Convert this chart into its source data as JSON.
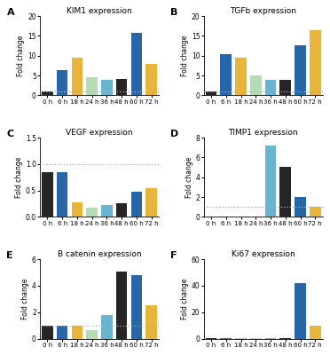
{
  "panels": [
    {
      "label": "A",
      "title": "KIM1 expression",
      "categories": [
        "0 h",
        "6 h",
        "18 h",
        "24 h",
        "36 h",
        "48 h",
        "60 h",
        "72 h"
      ],
      "values": [
        0.9,
        6.3,
        9.4,
        4.6,
        3.9,
        4.1,
        15.7,
        7.9
      ],
      "ylim": [
        0,
        20
      ],
      "yticks": [
        0,
        5,
        10,
        15,
        20
      ],
      "dotted_line": 1.0,
      "show_dotted": true
    },
    {
      "label": "B",
      "title": "TGFb expression",
      "categories": [
        "0 h",
        "6 h",
        "18 h",
        "24 h",
        "36 h",
        "48 h",
        "60 h",
        "72 h"
      ],
      "values": [
        1.1,
        10.4,
        9.4,
        5.1,
        3.9,
        3.9,
        12.7,
        16.5
      ],
      "ylim": [
        0,
        20
      ],
      "yticks": [
        0,
        5,
        10,
        15,
        20
      ],
      "dotted_line": 1.0,
      "show_dotted": true
    },
    {
      "label": "C",
      "title": "VEGF expression",
      "categories": [
        "0 h",
        "6 h",
        "18 h",
        "24 h",
        "36 h",
        "48 h",
        "60 h",
        "72 h"
      ],
      "values": [
        0.85,
        0.85,
        0.27,
        0.17,
        0.22,
        0.26,
        0.48,
        0.54
      ],
      "ylim": [
        0,
        1.5
      ],
      "yticks": [
        0.0,
        0.5,
        1.0,
        1.5
      ],
      "dotted_line": 1.0,
      "show_dotted": true
    },
    {
      "label": "D",
      "title": "TIMP1 expression",
      "categories": [
        "0 h",
        "6 h",
        "18 h",
        "24 h",
        "36 h",
        "48 h",
        "60 h",
        "72 h"
      ],
      "values": [
        0.05,
        0.05,
        0.05,
        0.05,
        7.2,
        5.1,
        2.0,
        1.0
      ],
      "ylim": [
        0,
        8
      ],
      "yticks": [
        0,
        2,
        4,
        6,
        8
      ],
      "dotted_line": 1.0,
      "show_dotted": true
    },
    {
      "label": "E",
      "title": "B catenin expression",
      "categories": [
        "0 h",
        "6 h",
        "18 h",
        "24 h",
        "36 h",
        "48 h",
        "60 h",
        "72 h"
      ],
      "values": [
        1.0,
        1.0,
        1.0,
        0.65,
        1.8,
        5.1,
        4.8,
        2.5
      ],
      "ylim": [
        0,
        6
      ],
      "yticks": [
        0,
        2,
        4,
        6
      ],
      "dotted_line": 1.0,
      "show_dotted": true
    },
    {
      "label": "F",
      "title": "Ki67 expression",
      "categories": [
        "0 h",
        "6 h",
        "18 h",
        "24 h",
        "36 h",
        "48 h",
        "60 h",
        "72 h"
      ],
      "values": [
        0.3,
        0.3,
        0.5,
        0.3,
        0.3,
        0.5,
        42.0,
        10.0
      ],
      "ylim": [
        0,
        60
      ],
      "yticks": [
        0,
        20,
        40,
        60
      ],
      "dotted_line": 1.0,
      "show_dotted": false
    }
  ],
  "bar_colors": [
    "#252525",
    "#2866a8",
    "#e8b53a",
    "#b5ddb5",
    "#6ab4d0",
    "#252525",
    "#2866a8",
    "#e8b53a"
  ],
  "ylabel": "Fold change",
  "background_color": "#ffffff",
  "dotted_color": "#aaaaaa"
}
